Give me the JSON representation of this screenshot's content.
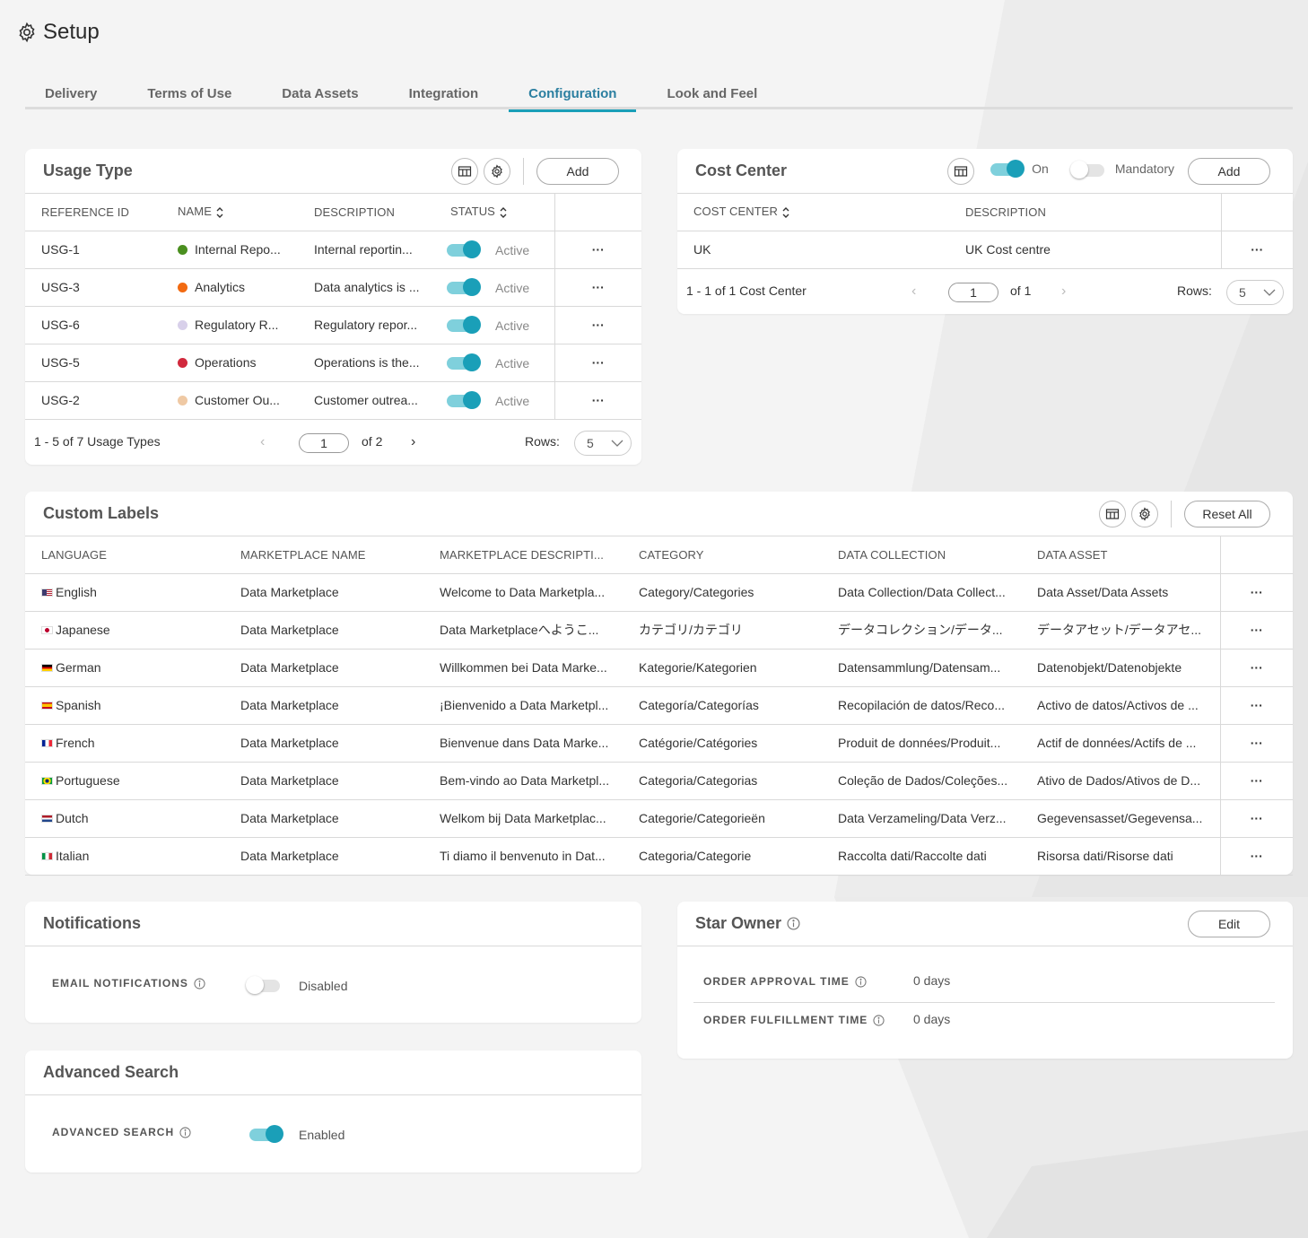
{
  "page": {
    "title": "Setup",
    "icon": "gear-icon"
  },
  "tabs": [
    {
      "label": "Delivery",
      "active": false
    },
    {
      "label": "Terms of Use",
      "active": false
    },
    {
      "label": "Data Assets",
      "active": false
    },
    {
      "label": "Integration",
      "active": false
    },
    {
      "label": "Configuration",
      "active": true
    },
    {
      "label": "Look and Feel",
      "active": false
    }
  ],
  "colors": {
    "accent": "#1a9fb8",
    "toggle_track": "#7fd0dc"
  },
  "usage_type": {
    "title": "Usage Type",
    "add_label": "Add",
    "columns": [
      "REFERENCE ID",
      "NAME",
      "DESCRIPTION",
      "STATUS"
    ],
    "rows": [
      {
        "id": "USG-1",
        "name": "Internal Repo...",
        "color": "#4a8f1f",
        "description": "Internal reportin...",
        "status": "Active"
      },
      {
        "id": "USG-3",
        "name": "Analytics",
        "color": "#f26a11",
        "description": "Data analytics is ...",
        "status": "Active"
      },
      {
        "id": "USG-6",
        "name": "Regulatory R...",
        "color": "#d8d0ea",
        "description": "Regulatory repor...",
        "status": "Active"
      },
      {
        "id": "USG-5",
        "name": "Operations",
        "color": "#d1293d",
        "description": "Operations is the...",
        "status": "Active"
      },
      {
        "id": "USG-2",
        "name": "Customer Ou...",
        "color": "#efc9a4",
        "description": "Customer outrea...",
        "status": "Active"
      }
    ],
    "pager": {
      "summary": "1 - 5 of 7 Usage Types",
      "page": "1",
      "of": "of 2",
      "rows_label": "Rows:",
      "rows_value": "5"
    }
  },
  "cost_center": {
    "title": "Cost Center",
    "toggle_on_label": "On",
    "mandatory_label": "Mandatory",
    "add_label": "Add",
    "columns": [
      "COST CENTER",
      "DESCRIPTION"
    ],
    "rows": [
      {
        "name": "UK",
        "description": "UK Cost centre"
      }
    ],
    "pager": {
      "summary": "1 - 1 of 1 Cost Center",
      "page": "1",
      "of": "of 1",
      "rows_label": "Rows:",
      "rows_value": "5"
    }
  },
  "custom_labels": {
    "title": "Custom Labels",
    "reset_label": "Reset All",
    "columns": [
      "LANGUAGE",
      "MARKETPLACE NAME",
      "MARKETPLACE DESCRIPTI...",
      "CATEGORY",
      "DATA COLLECTION",
      "DATA ASSET"
    ],
    "rows": [
      {
        "flag": "us",
        "language": "English",
        "marketplace": "Data Marketplace",
        "description": "Welcome to Data Marketpla...",
        "category": "Category/Categories",
        "collection": "Data Collection/Data Collect...",
        "asset": "Data Asset/Data Assets"
      },
      {
        "flag": "jp",
        "language": "Japanese",
        "marketplace": "Data Marketplace",
        "description": "Data Marketplaceへようこ...",
        "category": "カテゴリ/カテゴリ",
        "collection": "データコレクション/データ...",
        "asset": "データアセット/データアセ..."
      },
      {
        "flag": "de",
        "language": "German",
        "marketplace": "Data Marketplace",
        "description": "Willkommen bei Data Marke...",
        "category": "Kategorie/Kategorien",
        "collection": "Datensammlung/Datensam...",
        "asset": "Datenobjekt/Datenobjekte"
      },
      {
        "flag": "es",
        "language": "Spanish",
        "marketplace": "Data Marketplace",
        "description": "¡Bienvenido a Data Marketpl...",
        "category": "Categoría/Categorías",
        "collection": "Recopilación de datos/Reco...",
        "asset": "Activo de datos/Activos de ..."
      },
      {
        "flag": "fr",
        "language": "French",
        "marketplace": "Data Marketplace",
        "description": "Bienvenue dans Data Marke...",
        "category": "Catégorie/Catégories",
        "collection": "Produit de données/Produit...",
        "asset": "Actif de données/Actifs de ..."
      },
      {
        "flag": "br",
        "language": "Portuguese",
        "marketplace": "Data Marketplace",
        "description": "Bem-vindo ao Data Marketpl...",
        "category": "Categoria/Categorias",
        "collection": "Coleção de Dados/Coleções...",
        "asset": "Ativo de Dados/Ativos de D..."
      },
      {
        "flag": "nl",
        "language": "Dutch",
        "marketplace": "Data Marketplace",
        "description": "Welkom bij Data Marketplac...",
        "category": "Categorie/Categorieën",
        "collection": "Data Verzameling/Data Verz...",
        "asset": "Gegevensasset/Gegevensa..."
      },
      {
        "flag": "it",
        "language": "Italian",
        "marketplace": "Data Marketplace",
        "description": "Ti diamo il benvenuto in Dat...",
        "category": "Categoria/Categorie",
        "collection": "Raccolta dati/Raccolte dati",
        "asset": "Risorsa dati/Risorse dati"
      }
    ]
  },
  "notifications": {
    "title": "Notifications",
    "email_label": "EMAIL NOTIFICATIONS",
    "email_state": "Disabled"
  },
  "advanced_search": {
    "title": "Advanced Search",
    "label": "ADVANCED SEARCH",
    "state": "Enabled"
  },
  "star_owner": {
    "title": "Star Owner",
    "edit_label": "Edit",
    "approval_label": "ORDER APPROVAL TIME",
    "approval_value": "0 days",
    "fulfillment_label": "ORDER FULFILLMENT TIME",
    "fulfillment_value": "0 days"
  }
}
